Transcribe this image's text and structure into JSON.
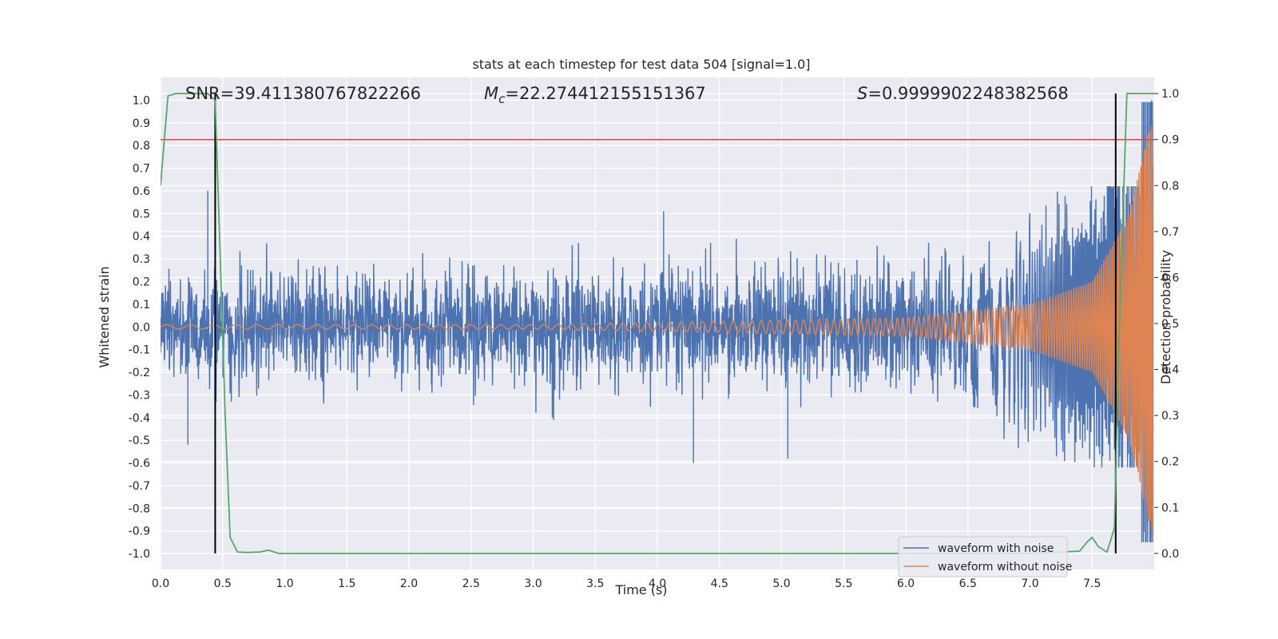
{
  "chart_data": {
    "type": "line",
    "title": "stats at each timestep for test data 504 [signal=1.0]",
    "xlabel": "Time (s)",
    "ylabel": "Whitened strain",
    "y2label": "Detection probability",
    "xlim": [
      0.0,
      8.0
    ],
    "ylim": [
      -1.07,
      1.1
    ],
    "y2lim": [
      -0.035,
      1.035
    ],
    "x_ticks": [
      "0.0",
      "0.5",
      "1.0",
      "1.5",
      "2.0",
      "2.5",
      "3.0",
      "3.5",
      "4.0",
      "4.5",
      "5.0",
      "5.5",
      "6.0",
      "6.5",
      "7.0",
      "7.5"
    ],
    "y_ticks": [
      "1.0",
      "0.9",
      "0.8",
      "0.7",
      "0.6",
      "0.5",
      "0.4",
      "0.3",
      "0.2",
      "0.1",
      "0.0",
      "-0.1",
      "-0.2",
      "-0.3",
      "-0.4",
      "-0.5",
      "-0.6",
      "-0.7",
      "-0.8",
      "-0.9",
      "-1.0"
    ],
    "y2_ticks": [
      "1.0",
      "0.9",
      "0.8",
      "0.7",
      "0.6",
      "0.5",
      "0.4",
      "0.3",
      "0.2",
      "0.1",
      "0.0"
    ],
    "annotations": {
      "snr": "SNR=39.411380767822266",
      "mc_symbol": "M",
      "mc_sub": "c",
      "mc_value": "=22.274412155151367",
      "s_symbol": "S",
      "s_value": "=0.9999902248382568"
    },
    "threshold": {
      "y2": 0.9,
      "color": "#c44e52"
    },
    "vertical_markers": [
      0.44,
      7.69
    ],
    "series": [
      {
        "name": "waveform with noise",
        "color": "#4c72b0",
        "axis": "left",
        "envelope": {
          "typical_amplitude": 0.22,
          "peak_amplitude": 0.6,
          "end_peak": 1.0
        },
        "notable_peaks": [
          [
            0.38,
            0.6
          ],
          [
            0.22,
            -0.52
          ],
          [
            4.29,
            -0.6
          ],
          [
            5.05,
            -0.58
          ],
          [
            4.05,
            0.51
          ],
          [
            7.98,
            1.0
          ],
          [
            7.98,
            -0.9
          ]
        ]
      },
      {
        "name": "waveform without noise",
        "color": "#dd8452",
        "axis": "left",
        "description_points": [
          [
            0.0,
            0.01
          ],
          [
            3.0,
            0.01
          ],
          [
            6.0,
            0.04
          ],
          [
            7.0,
            0.1
          ],
          [
            7.5,
            0.2
          ],
          [
            7.8,
            0.5
          ],
          [
            7.98,
            0.92
          ]
        ]
      },
      {
        "name": "detection probability",
        "color": "#55a868",
        "axis": "right",
        "x": [
          0.0,
          0.06,
          0.12,
          0.2,
          0.3,
          0.38,
          0.44,
          0.48,
          0.52,
          0.56,
          0.62,
          0.7,
          0.8,
          0.87,
          0.95,
          1.2,
          2.0,
          3.0,
          4.0,
          5.0,
          6.0,
          7.0,
          7.4,
          7.46,
          7.5,
          7.55,
          7.62,
          7.68,
          7.72,
          7.78,
          7.84,
          7.9,
          8.0
        ],
        "y": [
          0.8,
          0.995,
          1.0,
          1.0,
          1.0,
          1.0,
          0.985,
          0.65,
          0.3,
          0.035,
          0.003,
          0.002,
          0.003,
          0.007,
          0.0,
          0.0,
          0.0,
          0.0,
          0.0,
          0.0,
          0.0,
          0.0,
          0.005,
          0.025,
          0.035,
          0.015,
          0.003,
          0.055,
          0.5,
          1.0,
          1.0,
          1.0,
          1.0
        ]
      }
    ],
    "legend": {
      "position": "lower-right",
      "entries": [
        {
          "label": "waveform with noise",
          "color": "#4c72b0"
        },
        {
          "label": "waveform without noise",
          "color": "#dd8452"
        }
      ]
    },
    "grid": true,
    "colors": {
      "background": "#eaeaf2",
      "grid": "#ffffff",
      "marker": "#000000"
    }
  }
}
